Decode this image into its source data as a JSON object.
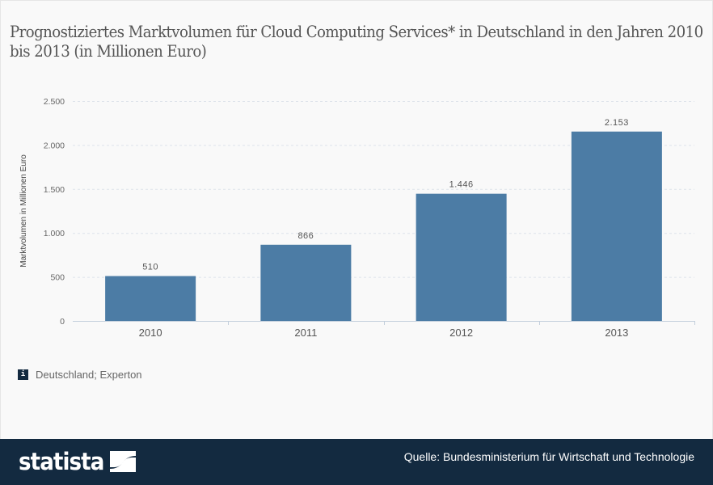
{
  "title": "Prognostiziertes Marktvolumen für Cloud Computing Services* in Deutschland in den Jahren 2010 bis 2013 (in Millionen Euro)",
  "info": {
    "icon": "info-icon",
    "icon_glyph": "i",
    "text": "Deutschland; Experton"
  },
  "footer": {
    "logo_text": "statista",
    "source": "Quelle: Bundesministerium für Wirtschaft und Technologie"
  },
  "colors": {
    "bar": "#4c7ca5",
    "footer": "#132a40",
    "grid": "#dde3ea",
    "axis": "#c3cfdc"
  },
  "chart_data": {
    "type": "bar",
    "title": "Prognostiziertes Marktvolumen für Cloud Computing Services* in Deutschland in den Jahren 2010 bis 2013 (in Millionen Euro)",
    "categories": [
      "2010",
      "2011",
      "2012",
      "2013"
    ],
    "values": [
      510,
      866,
      1446,
      2153
    ],
    "value_labels": [
      "510",
      "866",
      "1.446",
      "2.153"
    ],
    "xlabel": "",
    "ylabel": "Marktvolumen in Millionen Euro",
    "ylim": [
      0,
      2500
    ],
    "yticks": [
      0,
      500,
      1000,
      1500,
      2000,
      2500
    ],
    "ytick_labels": [
      "0",
      "500",
      "1.000",
      "1.500",
      "2.000",
      "2.500"
    ],
    "grid": true,
    "legend": "none"
  }
}
